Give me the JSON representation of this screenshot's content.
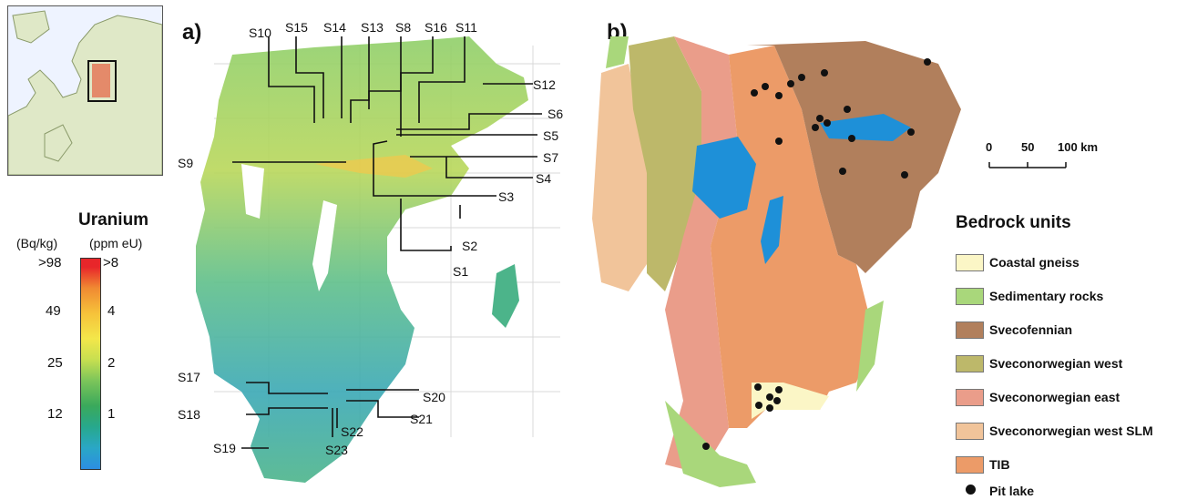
{
  "locator": {
    "region": "Europe inset",
    "highlight_color": "#e48a6a"
  },
  "uranium_legend": {
    "title": "Uranium",
    "unit_left": "(Bq/kg)",
    "unit_right": "(ppm eU)",
    "ticks_left": [
      ">98",
      "49",
      "25",
      "12"
    ],
    "ticks_right": [
      ">8",
      "4",
      "2",
      "1"
    ]
  },
  "panel_a": {
    "label": "a)",
    "sites": [
      "S1",
      "S2",
      "S3",
      "S4",
      "S5",
      "S6",
      "S7",
      "S8",
      "S9",
      "S10",
      "S11",
      "S12",
      "S13",
      "S14",
      "S15",
      "S16",
      "S17",
      "S18",
      "S19",
      "S20",
      "S21",
      "S22",
      "S23"
    ]
  },
  "panel_b": {
    "label": "b)",
    "scale": {
      "labels": [
        "0",
        "50",
        "100 km"
      ]
    },
    "legend": {
      "title": "Bedrock units",
      "items": [
        {
          "label": "Coastal gneiss",
          "color": "#fbf6c6"
        },
        {
          "label": "Sedimentary rocks",
          "color": "#a9d77b"
        },
        {
          "label": "Svecofennian",
          "color": "#b17f5c"
        },
        {
          "label": "Sveconorwegian west",
          "color": "#bdb86a"
        },
        {
          "label": "Sveconorwegian east",
          "color": "#ea9d8a"
        },
        {
          "label": "Sveconorwegian west SLM",
          "color": "#f1c49a"
        },
        {
          "label": "TIB",
          "color": "#ec9b68"
        }
      ],
      "pit_lake_label": "Pit lake"
    }
  }
}
